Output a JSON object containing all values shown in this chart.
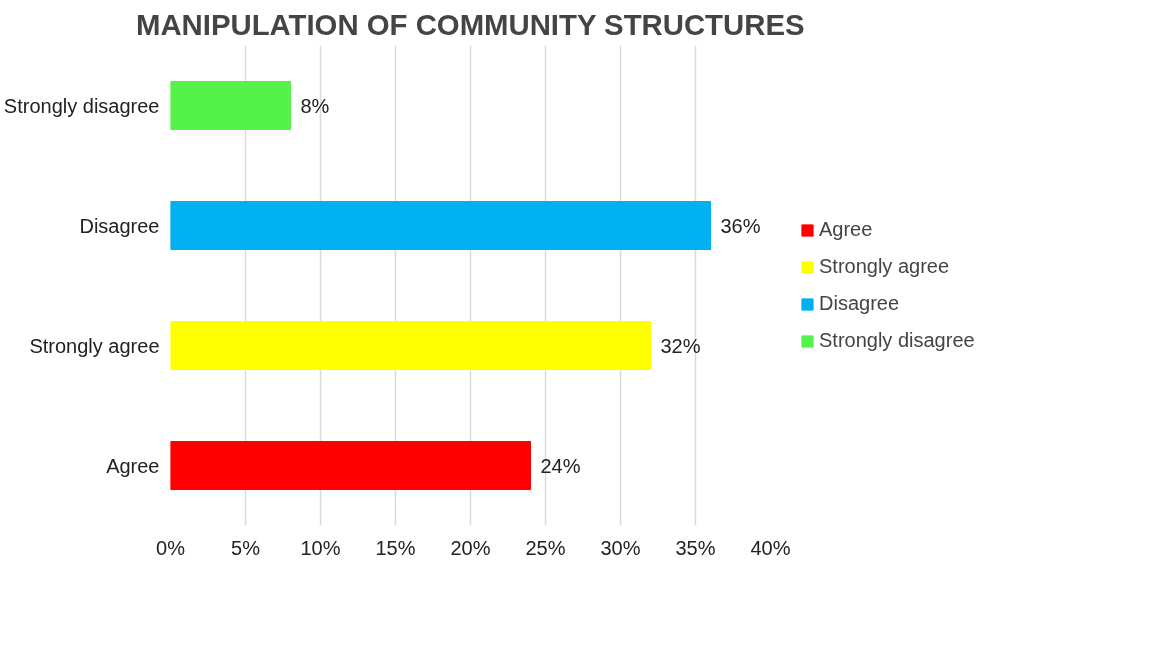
{
  "chart_data": {
    "type": "bar",
    "orientation": "horizontal",
    "title": "MANIPULATION OF COMMUNITY STRUCTURES",
    "categories": [
      "Strongly disagree",
      "Disagree",
      "Strongly agree",
      "Agree"
    ],
    "series": [
      {
        "name": "Agree",
        "color": "#ff0000",
        "values": [
          null,
          null,
          null,
          24
        ],
        "value_labels": [
          null,
          null,
          null,
          "24%"
        ]
      },
      {
        "name": "Strongly agree",
        "color": "#ffff00",
        "values": [
          null,
          null,
          32,
          null
        ],
        "value_labels": [
          null,
          null,
          "32%",
          null
        ]
      },
      {
        "name": "Disagree",
        "color": "#00b0f0",
        "values": [
          null,
          36,
          null,
          null
        ],
        "value_labels": [
          null,
          "36%",
          null,
          null
        ]
      },
      {
        "name": "Strongly disagree",
        "color": "#55f24a",
        "values": [
          8,
          null,
          null,
          null
        ],
        "value_labels": [
          "8%",
          null,
          null,
          null
        ]
      }
    ],
    "xlim": [
      0,
      40
    ],
    "xticks": [
      {
        "value": 0,
        "label": "0%"
      },
      {
        "value": 5,
        "label": "5%"
      },
      {
        "value": 10,
        "label": "10%"
      },
      {
        "value": 15,
        "label": "15%"
      },
      {
        "value": 20,
        "label": "20%"
      },
      {
        "value": 25,
        "label": "25%"
      },
      {
        "value": 30,
        "label": "30%"
      },
      {
        "value": 35,
        "label": "35%"
      },
      {
        "value": 40,
        "label": "40%"
      }
    ],
    "grid": "x",
    "legend": "right"
  }
}
